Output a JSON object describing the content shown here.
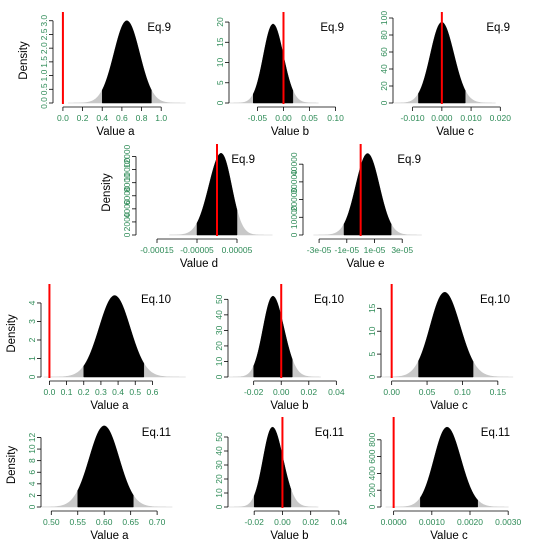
{
  "colors": {
    "hpd_fill": "#000000",
    "tail_fill": "#c8c8c8",
    "reference_line": "#ff0000",
    "tick_text": "#2e8b57",
    "axis": "#000000"
  },
  "chart_data": [
    {
      "type": "area",
      "title": "Eq.9",
      "xlabel": "Value a",
      "ylabel": "Density",
      "xlim": [
        -0.05,
        1.12
      ],
      "ylim": [
        0,
        3.1
      ],
      "mean": 0.65,
      "sd": 0.13,
      "peak": 3.0,
      "hpd": [
        0.4,
        0.9
      ],
      "skew": 0,
      "reference": 0.0,
      "x_ticks": [
        0.0,
        0.2,
        0.4,
        0.6,
        0.8,
        1.0
      ],
      "x_tick_labels": [
        "0.0",
        "0.2",
        "0.4",
        "0.6",
        "0.8",
        "1.0"
      ],
      "y_ticks": [
        0.0,
        0.5,
        1.0,
        1.5,
        2.0,
        2.5,
        3.0
      ],
      "y_tick_labels": [
        "0.0",
        "0.5",
        "1.0",
        "1.5",
        "2.0",
        "2.5",
        "3.0"
      ]
    },
    {
      "type": "area",
      "title": "Eq.9",
      "xlabel": "Value b",
      "ylabel": "",
      "xlim": [
        -0.095,
        0.12
      ],
      "ylim": [
        0,
        21
      ],
      "mean": -0.02,
      "sd": 0.019,
      "peak": 19.5,
      "hpd": [
        -0.058,
        0.018
      ],
      "skew": 0.12,
      "reference": 0.0,
      "x_ticks": [
        -0.05,
        0.0,
        0.05,
        0.1
      ],
      "x_tick_labels": [
        "-0.05",
        "0.00",
        "0.05",
        "0.10"
      ],
      "y_ticks": [
        0,
        5,
        10,
        15,
        20
      ],
      "y_tick_labels": [
        "0",
        "5",
        "10",
        "15",
        "20"
      ]
    },
    {
      "type": "area",
      "title": "Eq.9",
      "xlabel": "Value c",
      "ylabel": "",
      "xlim": [
        -0.015,
        0.024
      ],
      "ylim": [
        0,
        100
      ],
      "mean": 0.0,
      "sd": 0.004,
      "peak": 95,
      "hpd": [
        -0.008,
        0.008
      ],
      "skew": 0.1,
      "reference": 0.0,
      "x_ticks": [
        -0.01,
        0.0,
        0.01,
        0.02
      ],
      "x_tick_labels": [
        "-0.010",
        "0.000",
        "0.010",
        "0.020"
      ],
      "y_ticks": [
        0,
        20,
        40,
        60,
        80,
        100
      ],
      "y_tick_labels": [
        "0",
        "20",
        "40",
        "60",
        "80",
        "100"
      ]
    },
    {
      "type": "area",
      "title": "Eq.9",
      "xlabel": "Value d",
      "ylabel": "Density",
      "xlim": [
        -0.00019,
        0.0001
      ],
      "ylim": [
        0,
        13000
      ],
      "mean": 1e-05,
      "sd": 2.8e-05,
      "peak": 12500,
      "hpd": [
        -5e-05,
        5e-05
      ],
      "skew": -0.25,
      "reference": 0.0,
      "x_ticks": [
        -0.00015,
        -5e-05,
        5e-05
      ],
      "x_tick_labels": [
        "-0.00015",
        "-0.00005",
        "0.00005"
      ],
      "y_ticks": [
        0,
        2000,
        4000,
        6000,
        8000,
        10000,
        12000
      ],
      "y_tick_labels": [
        "0",
        "2000",
        "4000",
        "6000",
        "8000",
        "10000",
        "12000"
      ]
    },
    {
      "type": "area",
      "title": "Eq.9",
      "xlabel": "Value e",
      "ylabel": "",
      "xlim": [
        -3.8e-05,
        4.5e-05
      ],
      "ylim": [
        0,
        48000
      ],
      "mean": 5e-06,
      "sd": 8.5e-06,
      "peak": 46000,
      "hpd": [
        -1.2e-05,
        2.2e-05
      ],
      "skew": 0,
      "reference": 0.0,
      "x_ticks": [
        -3e-05,
        -1e-05,
        1e-05,
        3e-05
      ],
      "x_tick_labels": [
        "-3e-05",
        "-1e-05",
        "1e-05",
        "3e-05"
      ],
      "y_ticks": [
        0,
        10000,
        20000,
        30000,
        40000
      ],
      "y_tick_labels": [
        "0",
        "10000",
        "20000",
        "30000",
        "40000"
      ]
    },
    {
      "type": "area",
      "title": "Eq.10",
      "xlabel": "Value a",
      "ylabel": "Density",
      "xlim": [
        -0.02,
        0.72
      ],
      "ylim": [
        0,
        4.7
      ],
      "mean": 0.38,
      "sd": 0.09,
      "peak": 4.4,
      "hpd": [
        0.2,
        0.55
      ],
      "skew": 0,
      "reference": 0.0,
      "x_ticks": [
        0.0,
        0.1,
        0.2,
        0.3,
        0.4,
        0.5,
        0.6
      ],
      "x_tick_labels": [
        "0.0",
        "0.1",
        "0.2",
        "0.3",
        "0.4",
        "0.5",
        "0.6"
      ],
      "y_ticks": [
        0,
        1,
        2,
        3,
        4
      ],
      "y_tick_labels": [
        "0",
        "1",
        "2",
        "3",
        "4"
      ]
    },
    {
      "type": "area",
      "title": "Eq.10",
      "xlabel": "Value b",
      "ylabel": "",
      "xlim": [
        -0.035,
        0.047
      ],
      "ylim": [
        0,
        56
      ],
      "mean": -0.006,
      "sd": 0.0075,
      "peak": 52,
      "hpd": [
        -0.02,
        0.008
      ],
      "skew": 0.2,
      "reference": 0.0,
      "x_ticks": [
        -0.02,
        0.0,
        0.02,
        0.04
      ],
      "x_tick_labels": [
        "-0.02",
        "0.00",
        "0.02",
        "0.04"
      ],
      "y_ticks": [
        0,
        10,
        20,
        30,
        40,
        50
      ],
      "y_tick_labels": [
        "0",
        "10",
        "20",
        "30",
        "40",
        "50"
      ]
    },
    {
      "type": "area",
      "title": "Eq.10",
      "xlabel": "Value c",
      "ylabel": "",
      "xlim": [
        -0.008,
        0.17
      ],
      "ylim": [
        0,
        19
      ],
      "mean": 0.075,
      "sd": 0.021,
      "peak": 18.5,
      "hpd": [
        0.038,
        0.115
      ],
      "skew": 0.1,
      "reference": 0.0,
      "x_ticks": [
        0.0,
        0.05,
        0.1,
        0.15
      ],
      "x_tick_labels": [
        "0.00",
        "0.05",
        "0.10",
        "0.15"
      ],
      "y_ticks": [
        0,
        5,
        10,
        15
      ],
      "y_tick_labels": [
        "0",
        "5",
        "10",
        "15"
      ]
    },
    {
      "type": "area",
      "title": "Eq.11",
      "xlabel": "Value a",
      "ylabel": "Density",
      "xlim": [
        0.49,
        0.73
      ],
      "ylim": [
        0,
        14.5
      ],
      "mean": 0.6,
      "sd": 0.028,
      "peak": 14,
      "hpd": [
        0.55,
        0.655
      ],
      "skew": 0,
      "reference": null,
      "x_ticks": [
        0.5,
        0.55,
        0.6,
        0.65,
        0.7
      ],
      "x_tick_labels": [
        "0.50",
        "0.55",
        "0.60",
        "0.65",
        "0.70"
      ],
      "y_ticks": [
        0,
        2,
        4,
        6,
        8,
        10,
        12
      ],
      "y_tick_labels": [
        "0",
        "2",
        "4",
        "6",
        "8",
        "10",
        "12"
      ]
    },
    {
      "type": "area",
      "title": "Eq.11",
      "xlabel": "Value b",
      "ylabel": "",
      "xlim": [
        -0.035,
        0.045
      ],
      "ylim": [
        0,
        60
      ],
      "mean": -0.007,
      "sd": 0.007,
      "peak": 57,
      "hpd": [
        -0.02,
        0.006
      ],
      "skew": 0.2,
      "reference": 0.0,
      "x_ticks": [
        -0.02,
        0.0,
        0.02,
        0.04
      ],
      "x_tick_labels": [
        "-0.02",
        "0.00",
        "0.02",
        "0.04"
      ],
      "y_ticks": [
        0,
        10,
        20,
        30,
        40,
        50
      ],
      "y_tick_labels": [
        "0",
        "10",
        "20",
        "30",
        "40",
        "50"
      ]
    },
    {
      "type": "area",
      "title": "Eq.11",
      "xlabel": "Value c",
      "ylabel": "",
      "xlim": [
        -0.0002,
        0.0031
      ],
      "ylim": [
        0,
        1000
      ],
      "mean": 0.0014,
      "sd": 0.00035,
      "peak": 950,
      "hpd": [
        0.0007,
        0.0022
      ],
      "skew": 0.1,
      "reference": 0.0,
      "x_ticks": [
        0.0,
        0.001,
        0.002,
        0.003
      ],
      "x_tick_labels": [
        "0.0000",
        "0.0010",
        "0.0020",
        "0.0030"
      ],
      "y_ticks": [
        0,
        200,
        400,
        600,
        800
      ],
      "y_tick_labels": [
        "0",
        "200",
        "400",
        "600",
        "800"
      ]
    }
  ]
}
